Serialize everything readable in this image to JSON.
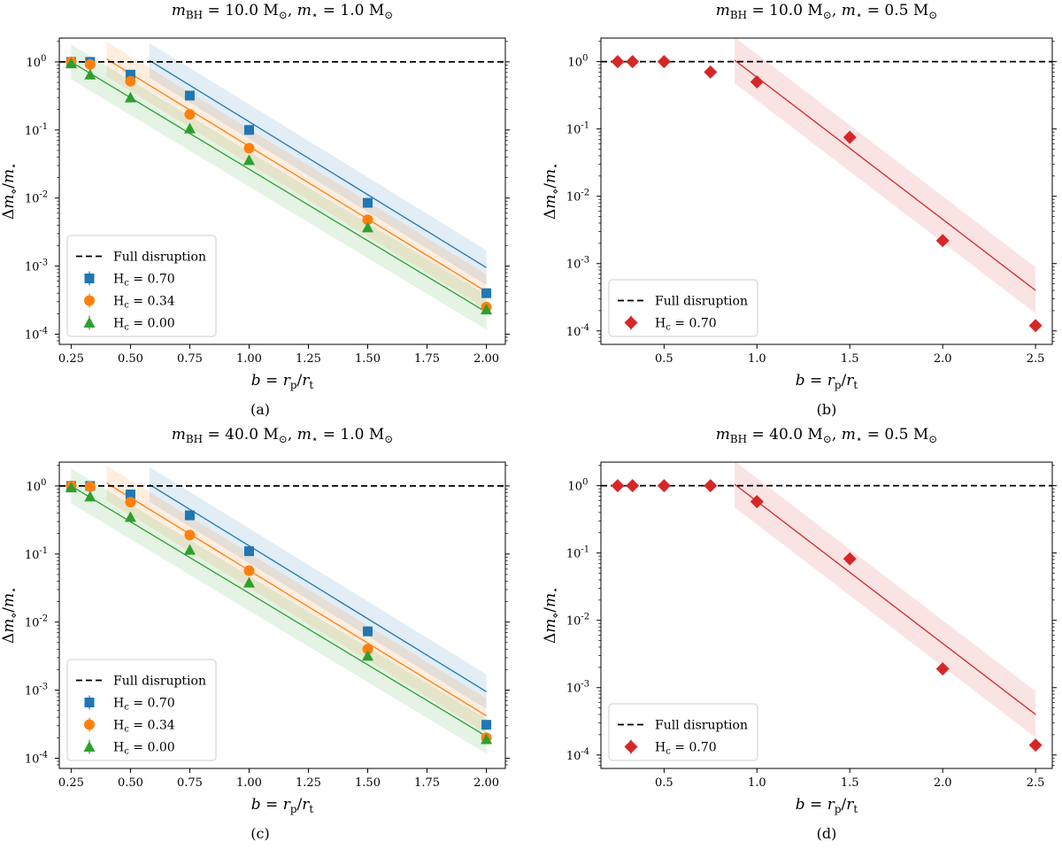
{
  "figure": {
    "captions": [
      "(a)",
      "(b)",
      "(c)",
      "(d)"
    ]
  },
  "chart_data": [
    {
      "type": "scatter",
      "panel": "a",
      "title": "m_BH = 10.0 M_⊙, m_⋆ = 1.0 M_⊙",
      "title_parts": {
        "m_bh": "m",
        "m_bh_sub": "BH",
        "m_bh_val": " = 10.0 M",
        "m_bh_unit_sub": "⊙",
        "sep": ", ",
        "m_star": "m",
        "m_star_sub": "⋆",
        "m_star_val": " = 1.0 M",
        "m_star_unit_sub": "⊙"
      },
      "xlabel": "b = r_p/r_t",
      "ylabel": "Δm_⋄/m_⋆",
      "xscale": "linear",
      "yscale": "log",
      "xlim": [
        0.2,
        2.08
      ],
      "ylim_log10": [
        -4.15,
        0.35
      ],
      "xticks": [
        0.25,
        0.5,
        0.75,
        1.0,
        1.25,
        1.5,
        1.75,
        2.0
      ],
      "xtick_labels": [
        "0.25",
        "0.50",
        "0.75",
        "1.00",
        "1.25",
        "1.50",
        "1.75",
        "2.00"
      ],
      "yticks_log10": [
        0,
        -1,
        -2,
        -3,
        -4
      ],
      "ytick_labels": [
        "10^0",
        "10^-1",
        "10^-2",
        "10^-3",
        "10^-4"
      ],
      "hline": {
        "y": 1.0,
        "label": "Full disruption",
        "style": "dashed"
      },
      "legend": {
        "position": "lower-left",
        "entries": [
          "Full disruption",
          "H_c = 0.70",
          "H_c = 0.34",
          "H_c = 0.00"
        ]
      },
      "series": [
        {
          "name": "H_c = 0.70",
          "label_value": "0.70",
          "marker": "square",
          "color": "#1f77b4",
          "x": [
            0.25,
            0.33,
            0.5,
            0.75,
            1.0,
            1.5,
            2.0
          ],
          "y": [
            1.0,
            1.0,
            0.65,
            0.32,
            0.1,
            0.0085,
            0.0004
          ],
          "fit": {
            "x": [
              0.58,
              2.0
            ],
            "y": [
              1.05,
              0.00095
            ],
            "band_factor": 1.8
          }
        },
        {
          "name": "H_c = 0.34",
          "label_value": "0.34",
          "marker": "circle",
          "color": "#ff7f0e",
          "x": [
            0.25,
            0.33,
            0.5,
            0.75,
            1.0,
            1.5,
            2.0
          ],
          "y": [
            1.0,
            0.92,
            0.52,
            0.17,
            0.054,
            0.0048,
            0.00025
          ],
          "fit": {
            "x": [
              0.4,
              2.0
            ],
            "y": [
              1.1,
              0.00042
            ],
            "band_factor": 1.8
          }
        },
        {
          "name": "H_c = 0.00",
          "label_value": "0.00",
          "marker": "triangle",
          "color": "#2ca02c",
          "x": [
            0.25,
            0.33,
            0.5,
            0.75,
            1.0,
            1.5,
            2.0
          ],
          "y": [
            0.95,
            0.65,
            0.3,
            0.105,
            0.036,
            0.0037,
            0.00023
          ],
          "fit": {
            "x": [
              0.25,
              2.0
            ],
            "y": [
              1.0,
              0.00021
            ],
            "band_factor": 1.8
          }
        }
      ]
    },
    {
      "type": "scatter",
      "panel": "b",
      "title": "m_BH = 10.0 M_⊙, m_⋆ = 0.5 M_⊙",
      "title_parts": {
        "m_bh": "m",
        "m_bh_sub": "BH",
        "m_bh_val": " = 10.0 M",
        "m_bh_unit_sub": "⊙",
        "sep": ", ",
        "m_star": "m",
        "m_star_sub": "⋆",
        "m_star_val": " = 0.5 M",
        "m_star_unit_sub": "⊙"
      },
      "xlabel": "b = r_p/r_t",
      "ylabel": "Δm_⋄/m_⋆",
      "xscale": "linear",
      "yscale": "log",
      "xlim": [
        0.16,
        2.59
      ],
      "ylim_log10": [
        -4.2,
        0.35
      ],
      "xticks": [
        0.5,
        1.0,
        1.5,
        2.0,
        2.5
      ],
      "xtick_labels": [
        "0.5",
        "1.0",
        "1.5",
        "2.0",
        "2.5"
      ],
      "yticks_log10": [
        0,
        -1,
        -2,
        -3,
        -4
      ],
      "ytick_labels": [
        "10^0",
        "10^-1",
        "10^-2",
        "10^-3",
        "10^-4"
      ],
      "hline": {
        "y": 1.0,
        "label": "Full disruption",
        "style": "dashed"
      },
      "legend": {
        "position": "lower-left",
        "entries": [
          "Full disruption",
          "H_c = 0.70"
        ]
      },
      "series": [
        {
          "name": "H_c = 0.70",
          "label_value": "0.70",
          "marker": "diamond",
          "color": "#d62728",
          "x": [
            0.25,
            0.33,
            0.5,
            0.75,
            1.0,
            1.5,
            2.0,
            2.5
          ],
          "y": [
            1.0,
            1.0,
            1.0,
            0.7,
            0.5,
            0.075,
            0.0022,
            0.00012
          ],
          "fit": {
            "x": [
              0.88,
              2.5
            ],
            "y": [
              1.05,
              0.0004
            ],
            "band_factor": 2.2
          }
        }
      ]
    },
    {
      "type": "scatter",
      "panel": "c",
      "title": "m_BH = 40.0 M_⊙, m_⋆ = 1.0 M_⊙",
      "title_parts": {
        "m_bh": "m",
        "m_bh_sub": "BH",
        "m_bh_val": " = 40.0 M",
        "m_bh_unit_sub": "⊙",
        "sep": ", ",
        "m_star": "m",
        "m_star_sub": "⋆",
        "m_star_val": " = 1.0 M",
        "m_star_unit_sub": "⊙"
      },
      "xlabel": "b = r_p/r_t",
      "ylabel": "Δm_⋄/m_⋆",
      "xscale": "linear",
      "yscale": "log",
      "xlim": [
        0.2,
        2.08
      ],
      "ylim_log10": [
        -4.15,
        0.35
      ],
      "xticks": [
        0.25,
        0.5,
        0.75,
        1.0,
        1.25,
        1.5,
        1.75,
        2.0
      ],
      "xtick_labels": [
        "0.25",
        "0.50",
        "0.75",
        "1.00",
        "1.25",
        "1.50",
        "1.75",
        "2.00"
      ],
      "yticks_log10": [
        0,
        -1,
        -2,
        -3,
        -4
      ],
      "ytick_labels": [
        "10^0",
        "10^-1",
        "10^-2",
        "10^-3",
        "10^-4"
      ],
      "hline": {
        "y": 1.0,
        "label": "Full disruption",
        "style": "dashed"
      },
      "legend": {
        "position": "lower-left",
        "entries": [
          "Full disruption",
          "H_c = 0.70",
          "H_c = 0.34",
          "H_c = 0.00"
        ]
      },
      "series": [
        {
          "name": "H_c = 0.70",
          "label_value": "0.70",
          "marker": "square",
          "color": "#1f77b4",
          "x": [
            0.25,
            0.33,
            0.5,
            0.75,
            1.0,
            1.5,
            2.0
          ],
          "y": [
            1.0,
            1.0,
            0.75,
            0.37,
            0.11,
            0.0073,
            0.00031
          ],
          "fit": {
            "x": [
              0.58,
              2.0
            ],
            "y": [
              1.05,
              0.00095
            ],
            "band_factor": 1.8
          }
        },
        {
          "name": "H_c = 0.34",
          "label_value": "0.34",
          "marker": "circle",
          "color": "#ff7f0e",
          "x": [
            0.25,
            0.33,
            0.5,
            0.75,
            1.0,
            1.5,
            2.0
          ],
          "y": [
            1.0,
            0.98,
            0.58,
            0.19,
            0.057,
            0.004,
            0.0002
          ],
          "fit": {
            "x": [
              0.4,
              2.0
            ],
            "y": [
              1.1,
              0.00042
            ],
            "band_factor": 1.8
          }
        },
        {
          "name": "H_c = 0.00",
          "label_value": "0.00",
          "marker": "triangle",
          "color": "#2ca02c",
          "x": [
            0.25,
            0.33,
            0.5,
            0.75,
            1.0,
            1.5,
            2.0
          ],
          "y": [
            0.95,
            0.7,
            0.35,
            0.115,
            0.038,
            0.0032,
            0.00019
          ],
          "fit": {
            "x": [
              0.25,
              2.0
            ],
            "y": [
              1.0,
              0.00021
            ],
            "band_factor": 1.8
          }
        }
      ]
    },
    {
      "type": "scatter",
      "panel": "d",
      "title": "m_BH = 40.0 M_⊙, m_⋆ = 0.5 M_⊙",
      "title_parts": {
        "m_bh": "m",
        "m_bh_sub": "BH",
        "m_bh_val": " = 40.0 M",
        "m_bh_unit_sub": "⊙",
        "sep": ", ",
        "m_star": "m",
        "m_star_sub": "⋆",
        "m_star_val": " = 0.5 M",
        "m_star_unit_sub": "⊙"
      },
      "xlabel": "b = r_p/r_t",
      "ylabel": "Δm_⋄/m_⋆",
      "xscale": "linear",
      "yscale": "log",
      "xlim": [
        0.16,
        2.59
      ],
      "ylim_log10": [
        -4.2,
        0.35
      ],
      "xticks": [
        0.5,
        1.0,
        1.5,
        2.0,
        2.5
      ],
      "xtick_labels": [
        "0.5",
        "1.0",
        "1.5",
        "2.0",
        "2.5"
      ],
      "yticks_log10": [
        0,
        -1,
        -2,
        -3,
        -4
      ],
      "ytick_labels": [
        "10^0",
        "10^-1",
        "10^-2",
        "10^-3",
        "10^-4"
      ],
      "hline": {
        "y": 1.0,
        "label": "Full disruption",
        "style": "dashed"
      },
      "legend": {
        "position": "lower-left",
        "entries": [
          "Full disruption",
          "H_c = 0.70"
        ]
      },
      "series": [
        {
          "name": "H_c = 0.70",
          "label_value": "0.70",
          "marker": "diamond",
          "color": "#d62728",
          "x": [
            0.25,
            0.33,
            0.5,
            0.75,
            1.0,
            1.5,
            2.0,
            2.5
          ],
          "y": [
            1.0,
            1.0,
            1.0,
            1.0,
            0.58,
            0.082,
            0.0019,
            0.00014
          ],
          "fit": {
            "x": [
              0.88,
              2.5
            ],
            "y": [
              1.05,
              0.0004
            ],
            "band_factor": 2.2
          }
        }
      ]
    }
  ]
}
